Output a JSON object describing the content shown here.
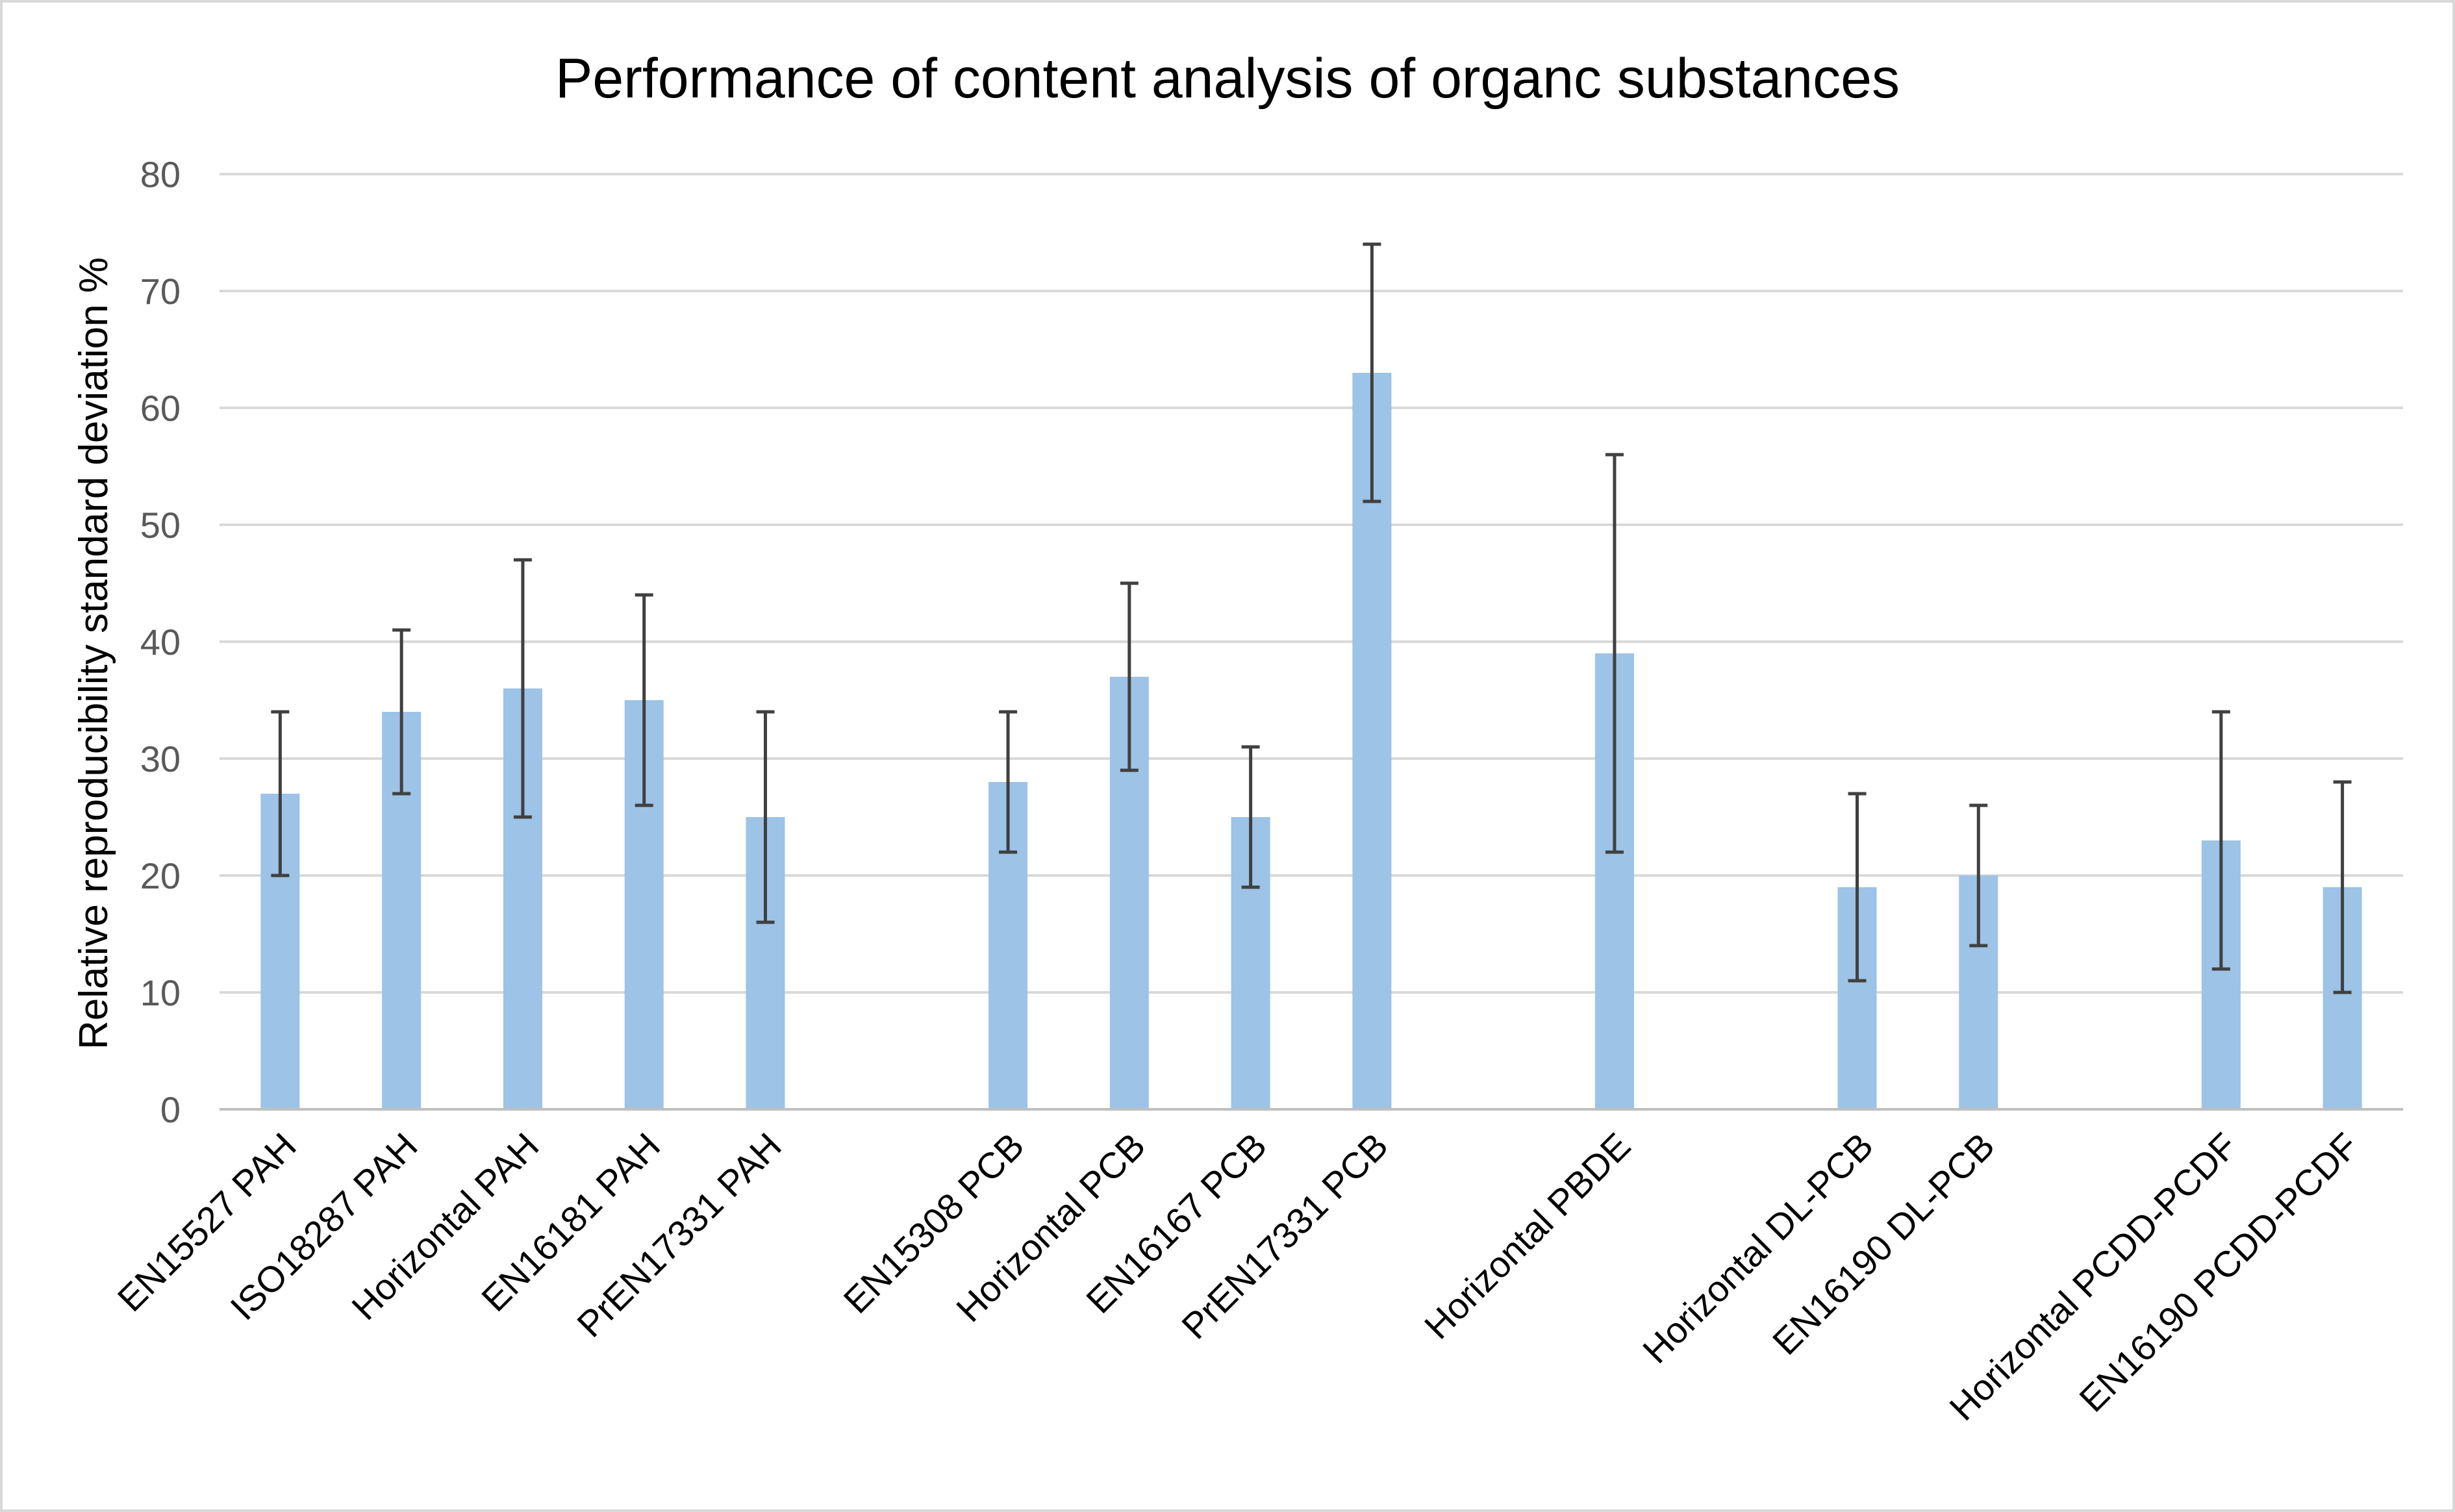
{
  "chart_data": {
    "type": "bar",
    "title": "Performance of content analysis of organc substances",
    "xlabel": "",
    "ylabel": "Relative reproducibility standard deviation %",
    "ylim": [
      0,
      80
    ],
    "yticks": [
      0,
      10,
      20,
      30,
      40,
      50,
      60,
      70,
      80
    ],
    "grid": true,
    "legend": "none",
    "bar_color": "#9dc3e6",
    "error_bar_color": "#404040",
    "categories": [
      "EN15527 PAH",
      "ISO18287 PAH",
      "Horizontal PAH",
      "EN16181 PAH",
      "PrEN17331 PAH",
      "",
      "EN15308 PCB",
      "Horizontal PCB",
      "EN16167 PCB",
      "PrEN17331 PCB",
      "",
      "Horizontal PBDE",
      "",
      "Horizontal DL-PCB",
      "EN16190 DL-PCB",
      "",
      "Horizontal PCDD-PCDF",
      "EN16190 PCDD-PCDF"
    ],
    "values": [
      27,
      34,
      36,
      35,
      25,
      null,
      28,
      37,
      25,
      63,
      null,
      39,
      null,
      19,
      20,
      null,
      23,
      19
    ],
    "error_low": [
      20,
      27,
      25,
      26,
      16,
      null,
      22,
      29,
      19,
      52,
      null,
      22,
      null,
      11,
      14,
      null,
      12,
      10
    ],
    "error_high": [
      34,
      41,
      47,
      44,
      34,
      null,
      34,
      45,
      31,
      74,
      null,
      56,
      null,
      27,
      26,
      null,
      34,
      28
    ]
  }
}
